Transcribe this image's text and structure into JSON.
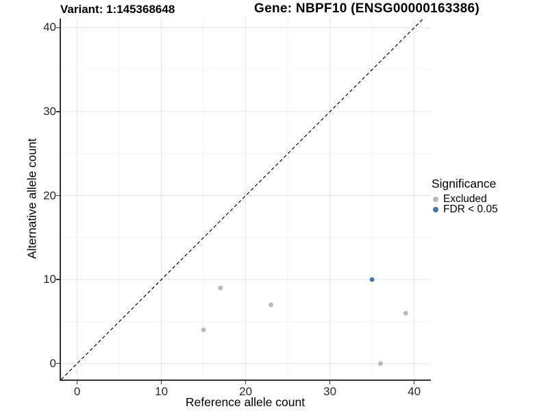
{
  "titles": {
    "variant": "Variant: 1:145368648",
    "gene": "Gene: NBPF10 (ENSG00000163386)"
  },
  "chart_data": {
    "type": "scatter",
    "title_left": "Variant: 1:145368648",
    "title_right": "Gene: NBPF10 (ENSG00000163386)",
    "xlabel": "Reference allele count",
    "ylabel": "Alternative allele count",
    "xlim": [
      -2,
      41.9
    ],
    "ylim": [
      -1.9,
      41.1
    ],
    "xticks": [
      0,
      10,
      20,
      30,
      40
    ],
    "yticks": [
      0,
      10,
      20,
      30,
      40
    ],
    "minor_xticks": [
      5,
      15,
      25,
      35
    ],
    "minor_yticks": [
      5,
      15,
      25,
      35
    ],
    "grid": "major+minor",
    "identity_line": {
      "type": "y=x",
      "style": "dashed",
      "color": "#000000"
    },
    "legend": {
      "title": "Significance",
      "position": "right"
    },
    "series": [
      {
        "name": "Excluded",
        "color": "#bababa",
        "points": [
          [
            15,
            4
          ],
          [
            17,
            9
          ],
          [
            23,
            7
          ],
          [
            36,
            0
          ],
          [
            39,
            6
          ]
        ]
      },
      {
        "name": "FDR < 0.05",
        "color": "#4575b4",
        "points": [
          [
            35,
            10
          ]
        ]
      }
    ],
    "point_radius": 3.4,
    "colors": {
      "grid_major": "#e3e3e3",
      "grid_minor": "#f0f0f0",
      "axis_line": "#333333",
      "tick_label": "#262626"
    }
  }
}
